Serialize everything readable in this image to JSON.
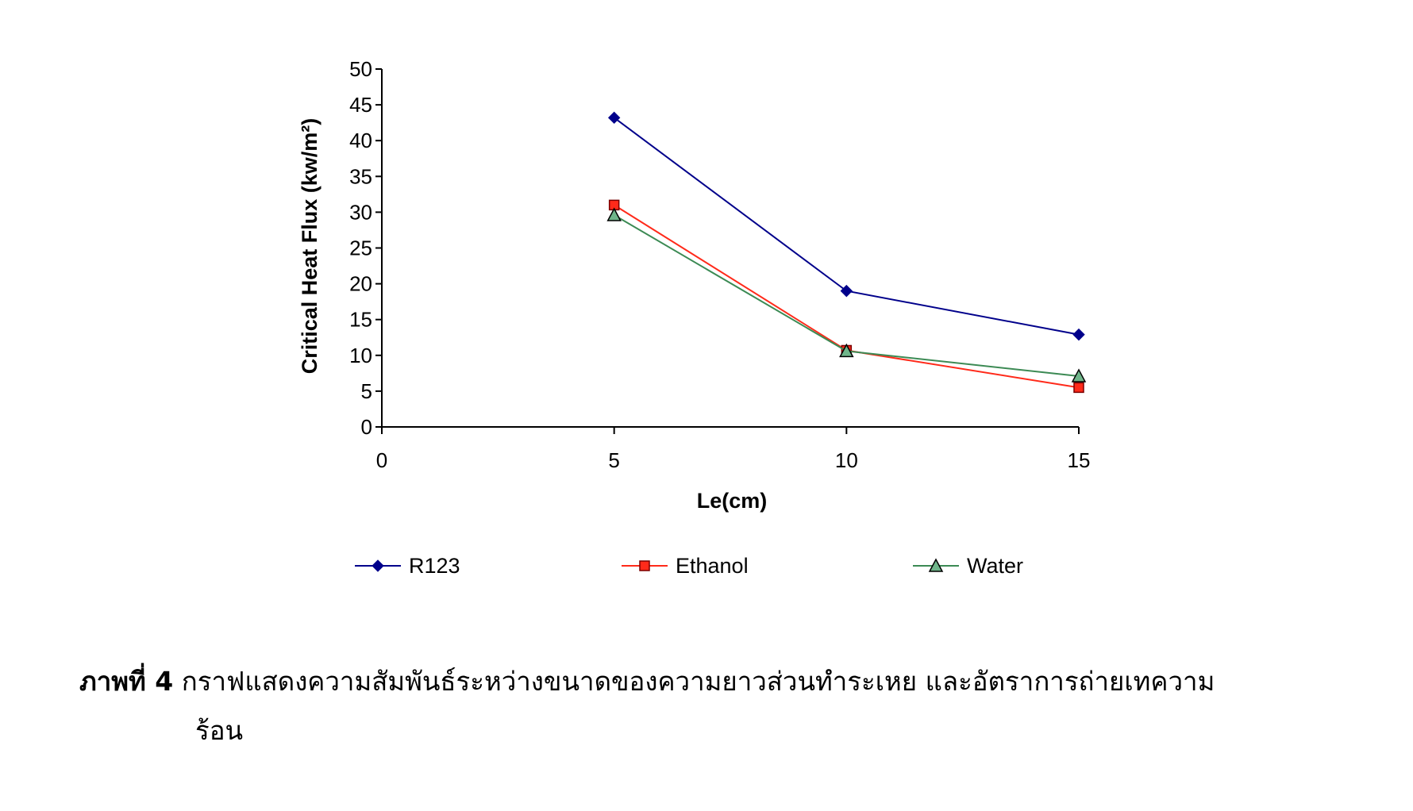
{
  "chart_data": {
    "type": "line",
    "xlabel": "Le(cm)",
    "ylabel": "Critical Heat Flux (kw/m²)",
    "xlim": [
      0,
      15
    ],
    "ylim": [
      0,
      50
    ],
    "xticks": [
      0,
      5,
      10,
      15
    ],
    "yticks": [
      0,
      5,
      10,
      15,
      20,
      25,
      30,
      35,
      40,
      45,
      50
    ],
    "x": [
      5,
      10,
      15
    ],
    "grid": false,
    "legend": "bottom",
    "series": [
      {
        "name": "R123",
        "values": [
          43.2,
          19.0,
          12.9
        ],
        "color": "#00008B",
        "marker": "diamond"
      },
      {
        "name": "Ethanol",
        "values": [
          31.0,
          10.7,
          5.5
        ],
        "color": "#FF2A1A",
        "marker": "square"
      },
      {
        "name": "Water",
        "values": [
          29.6,
          10.6,
          7.1
        ],
        "color": "#3C8A54",
        "marker": "triangle"
      }
    ]
  },
  "caption": {
    "label": "ภาพที่ 4",
    "line1": "กราฟแสดงความสัมพันธ์ระหว่างขนาดของความยาวส่วนทำระเหย และอัตราการถ่ายเทความ",
    "line2": "ร้อน"
  }
}
